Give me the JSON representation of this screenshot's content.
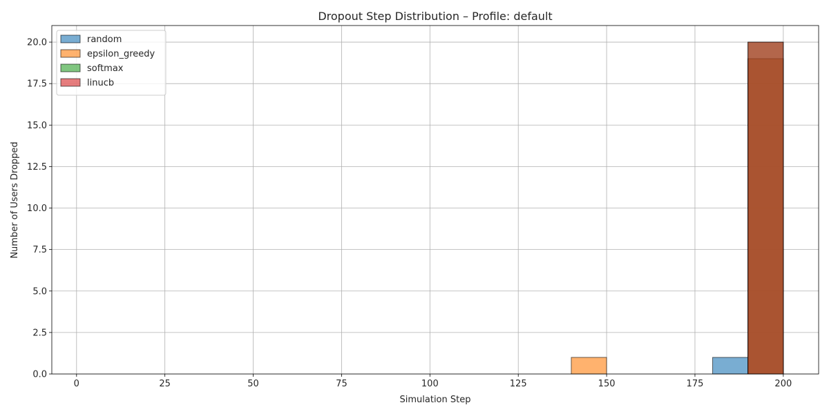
{
  "chart_data": {
    "type": "histogram",
    "title": "Dropout Step Distribution – Profile: default",
    "xlabel": "Simulation Step",
    "ylabel": "Number of Users Dropped",
    "xlim": [
      -7,
      210
    ],
    "ylim": [
      0,
      21
    ],
    "xticks": [
      0,
      25,
      50,
      75,
      100,
      125,
      150,
      175,
      200
    ],
    "yticks": [
      0.0,
      2.5,
      5.0,
      7.5,
      10.0,
      12.5,
      15.0,
      17.5,
      20.0
    ],
    "grid": true,
    "legend_position": "top-left",
    "bin_width": 10,
    "bin_edges": [
      0,
      10,
      20,
      30,
      40,
      50,
      60,
      70,
      80,
      90,
      100,
      110,
      120,
      130,
      140,
      150,
      160,
      170,
      180,
      190,
      200
    ],
    "series": [
      {
        "name": "random",
        "color": "#1f77b4",
        "values": [
          0,
          0,
          0,
          0,
          0,
          0,
          0,
          0,
          0,
          0,
          0,
          0,
          0,
          0,
          0,
          0,
          0,
          0,
          1,
          19
        ]
      },
      {
        "name": "epsilon_greedy",
        "color": "#ff7f0e",
        "values": [
          0,
          0,
          0,
          0,
          0,
          0,
          0,
          0,
          0,
          0,
          0,
          0,
          0,
          0,
          1,
          0,
          0,
          0,
          0,
          19
        ]
      },
      {
        "name": "softmax",
        "color": "#2ca02c",
        "values": [
          0,
          0,
          0,
          0,
          0,
          0,
          0,
          0,
          0,
          0,
          0,
          0,
          0,
          0,
          0,
          0,
          0,
          0,
          0,
          20
        ]
      },
      {
        "name": "linucb",
        "color": "#d62728",
        "values": [
          0,
          0,
          0,
          0,
          0,
          0,
          0,
          0,
          0,
          0,
          0,
          0,
          0,
          0,
          0,
          0,
          0,
          0,
          0,
          20
        ]
      }
    ]
  }
}
